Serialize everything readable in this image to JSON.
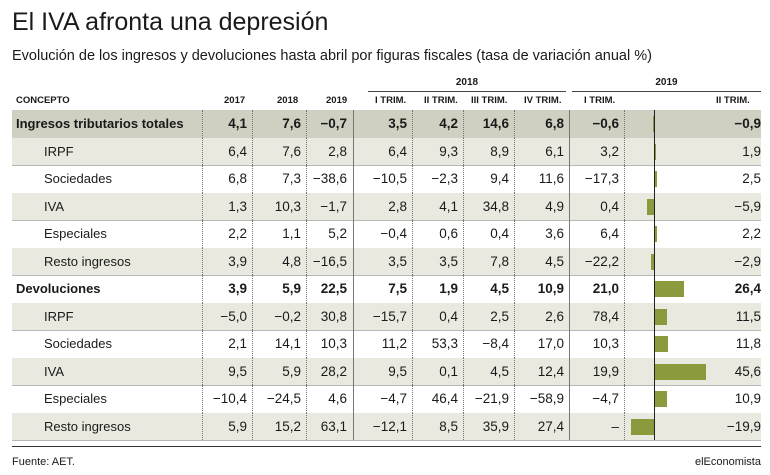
{
  "title": "El IVA afronta una depresión",
  "subtitle": "Evolución de los ingresos y devoluciones hasta abril por figuras fiscales (tasa de variación anual %)",
  "year_groups": [
    "2018",
    "2019"
  ],
  "columns": [
    "CONCEPTO",
    "2017",
    "2018",
    "2019",
    "I TRIM.",
    "II TRIM.",
    "III TRIM.",
    "IV TRIM.",
    "I TRIM.",
    "II TRIM."
  ],
  "rows": [
    {
      "label": "Ingresos tributarios totales",
      "values": [
        "4,1",
        "7,6",
        "−0,7",
        "3,5",
        "4,2",
        "14,6",
        "6,8",
        "−0,6",
        "−0,9"
      ],
      "bold": true,
      "bar": -0.9
    },
    {
      "label": "IRPF",
      "values": [
        "6,4",
        "7,6",
        "2,8",
        "6,4",
        "9,3",
        "8,9",
        "6,1",
        "3,2",
        "1,9"
      ],
      "bold": false,
      "bar": 1.9
    },
    {
      "label": "Sociedades",
      "values": [
        "6,8",
        "7,3",
        "−38,6",
        "−10,5",
        "−2,3",
        "9,4",
        "11,6",
        "−17,3",
        "2,5"
      ],
      "bold": false,
      "bar": 2.5
    },
    {
      "label": "IVA",
      "values": [
        "1,3",
        "10,3",
        "−1,7",
        "2,8",
        "4,1",
        "34,8",
        "4,9",
        "0,4",
        "−5,9"
      ],
      "bold": false,
      "bar": -5.9
    },
    {
      "label": "Especiales",
      "values": [
        "2,2",
        "1,1",
        "5,2",
        "−0,4",
        "0,6",
        "0,4",
        "3,6",
        "6,4",
        "2,2"
      ],
      "bold": false,
      "bar": 2.2
    },
    {
      "label": "Resto ingresos",
      "values": [
        "3,9",
        "4,8",
        "−16,5",
        "3,5",
        "3,5",
        "7,8",
        "4,5",
        "−22,2",
        "−2,9"
      ],
      "bold": false,
      "bar": -2.9
    },
    {
      "label": "Devoluciones",
      "values": [
        "3,9",
        "5,9",
        "22,5",
        "7,5",
        "1,9",
        "4,5",
        "10,9",
        "21,0",
        "26,4"
      ],
      "bold": true,
      "bar": 26.4
    },
    {
      "label": "IRPF",
      "values": [
        "−5,0",
        "−0,2",
        "30,8",
        "−15,7",
        "0,4",
        "2,5",
        "2,6",
        "78,4",
        "11,5"
      ],
      "bold": false,
      "bar": 11.5
    },
    {
      "label": "Sociedades",
      "values": [
        "2,1",
        "14,1",
        "10,3",
        "11,2",
        "53,3",
        "−8,4",
        "17,0",
        "10,3",
        "11,8"
      ],
      "bold": false,
      "bar": 11.8
    },
    {
      "label": "IVA",
      "values": [
        "9,5",
        "5,9",
        "28,2",
        "9,5",
        "0,1",
        "4,5",
        "12,4",
        "19,9",
        "45,6"
      ],
      "bold": false,
      "bar": 45.6
    },
    {
      "label": "Especiales",
      "values": [
        "−10,4",
        "−24,5",
        "4,6",
        "−4,7",
        "46,4",
        "−21,9",
        "−58,9",
        "−4,7",
        "10,9"
      ],
      "bold": false,
      "bar": 10.9
    },
    {
      "label": "Resto ingresos",
      "values": [
        "5,9",
        "15,2",
        "63,1",
        "−12,1",
        "8,5",
        "35,9",
        "27,4",
        "–",
        "−19,9"
      ],
      "bold": false,
      "bar": -19.9
    }
  ],
  "bar_color": "#8a9a3c",
  "footer": {
    "source": "Fuente: AET.",
    "brand": "elEconomista"
  }
}
